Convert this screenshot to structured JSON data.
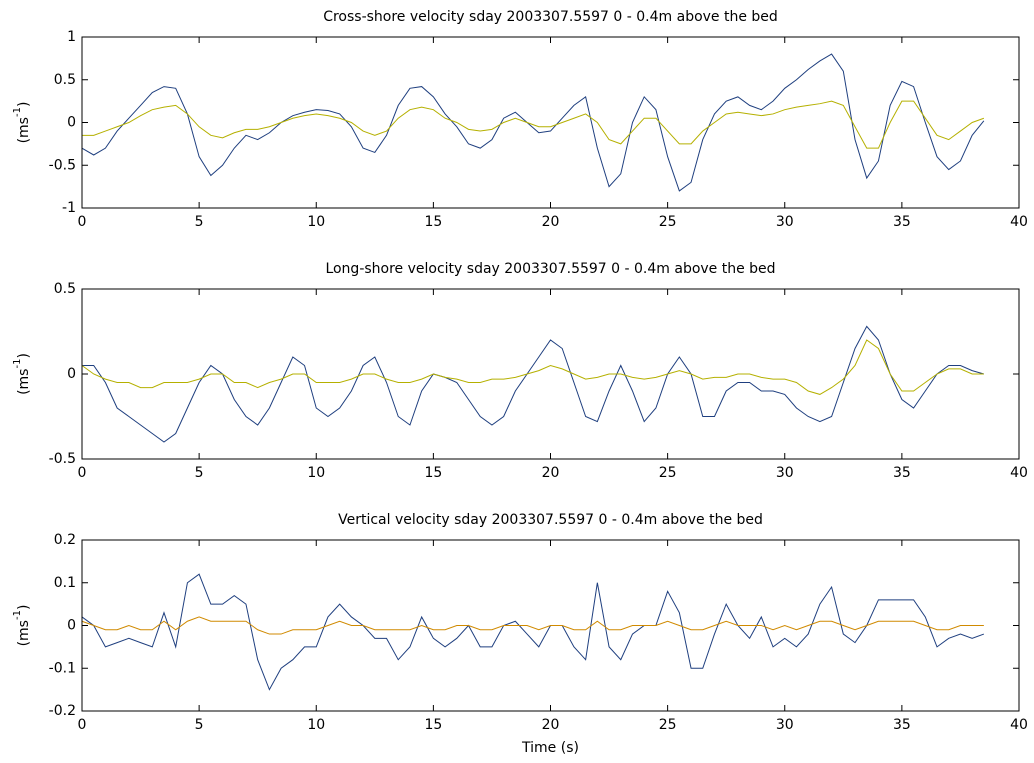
{
  "chart_data": [
    {
      "type": "line",
      "title": "Cross-shore velocity sday 2003307.5597 0 - 0.4m above the bed",
      "ylabel": {
        "base": "(ms",
        "sup": "-1",
        "close": ")"
      },
      "x": [
        0,
        0.5,
        1,
        1.5,
        2,
        2.5,
        3,
        3.5,
        4,
        4.5,
        5,
        5.5,
        6,
        6.5,
        7,
        7.5,
        8,
        8.5,
        9,
        9.5,
        10,
        10.5,
        11,
        11.5,
        12,
        12.5,
        13,
        13.5,
        14,
        14.5,
        15,
        15.5,
        16,
        16.5,
        17,
        17.5,
        18,
        18.5,
        19,
        19.5,
        20,
        20.5,
        21,
        21.5,
        22,
        22.5,
        23,
        23.5,
        24,
        24.5,
        25,
        25.5,
        26,
        26.5,
        27,
        27.5,
        28,
        28.5,
        29,
        29.5,
        30,
        30.5,
        31,
        31.5,
        32,
        32.5,
        33,
        33.5,
        34,
        34.5,
        35,
        35.5,
        36,
        36.5,
        37,
        37.5,
        38,
        38.5
      ],
      "series": [
        {
          "color": "#1f3f7f",
          "values": [
            -0.3,
            -0.38,
            -0.3,
            -0.1,
            0.05,
            0.2,
            0.35,
            0.42,
            0.4,
            0.1,
            -0.4,
            -0.62,
            -0.5,
            -0.3,
            -0.15,
            -0.2,
            -0.12,
            0.0,
            0.08,
            0.12,
            0.15,
            0.14,
            0.1,
            -0.05,
            -0.3,
            -0.35,
            -0.15,
            0.2,
            0.4,
            0.42,
            0.3,
            0.1,
            -0.05,
            -0.25,
            -0.3,
            -0.2,
            0.05,
            0.12,
            0.0,
            -0.12,
            -0.1,
            0.05,
            0.2,
            0.3,
            -0.3,
            -0.75,
            -0.6,
            0.0,
            0.3,
            0.15,
            -0.4,
            -0.8,
            -0.7,
            -0.2,
            0.1,
            0.25,
            0.3,
            0.2,
            0.15,
            0.25,
            0.4,
            0.5,
            0.62,
            0.72,
            0.8,
            0.6,
            -0.2,
            -0.65,
            -0.45,
            0.2,
            0.48,
            0.42,
            0.0,
            -0.4,
            -0.55,
            -0.45,
            -0.15,
            0.02
          ]
        },
        {
          "color": "#b5b000",
          "values": [
            -0.15,
            -0.15,
            -0.1,
            -0.05,
            0.0,
            0.08,
            0.15,
            0.18,
            0.2,
            0.1,
            -0.05,
            -0.15,
            -0.18,
            -0.12,
            -0.08,
            -0.08,
            -0.05,
            0.0,
            0.05,
            0.08,
            0.1,
            0.08,
            0.05,
            0.0,
            -0.1,
            -0.15,
            -0.1,
            0.05,
            0.15,
            0.18,
            0.15,
            0.05,
            0.0,
            -0.08,
            -0.1,
            -0.08,
            0.0,
            0.05,
            0.0,
            -0.05,
            -0.05,
            0.0,
            0.05,
            0.1,
            0.0,
            -0.2,
            -0.25,
            -0.1,
            0.05,
            0.05,
            -0.1,
            -0.25,
            -0.25,
            -0.1,
            0.0,
            0.1,
            0.12,
            0.1,
            0.08,
            0.1,
            0.15,
            0.18,
            0.2,
            0.22,
            0.25,
            0.2,
            -0.05,
            -0.3,
            -0.3,
            0.0,
            0.25,
            0.25,
            0.05,
            -0.15,
            -0.2,
            -0.1,
            0.0,
            0.05
          ]
        }
      ],
      "xlim": [
        0,
        40
      ],
      "xticks": [
        0,
        5,
        10,
        15,
        20,
        25,
        30,
        35,
        40
      ],
      "ylim": [
        -1,
        1
      ],
      "yticks": [
        -1,
        -0.5,
        0,
        0.5,
        1
      ]
    },
    {
      "type": "line",
      "title": "Long-shore velocity sday 2003307.5597 0 - 0.4m above the bed",
      "ylabel": {
        "base": "(ms",
        "sup": "-1",
        "close": ")"
      },
      "x": [
        0,
        0.5,
        1,
        1.5,
        2,
        2.5,
        3,
        3.5,
        4,
        4.5,
        5,
        5.5,
        6,
        6.5,
        7,
        7.5,
        8,
        8.5,
        9,
        9.5,
        10,
        10.5,
        11,
        11.5,
        12,
        12.5,
        13,
        13.5,
        14,
        14.5,
        15,
        15.5,
        16,
        16.5,
        17,
        17.5,
        18,
        18.5,
        19,
        19.5,
        20,
        20.5,
        21,
        21.5,
        22,
        22.5,
        23,
        23.5,
        24,
        24.5,
        25,
        25.5,
        26,
        26.5,
        27,
        27.5,
        28,
        28.5,
        29,
        29.5,
        30,
        30.5,
        31,
        31.5,
        32,
        32.5,
        33,
        33.5,
        34,
        34.5,
        35,
        35.5,
        36,
        36.5,
        37,
        37.5,
        38,
        38.5
      ],
      "series": [
        {
          "color": "#1f3f7f",
          "values": [
            0.05,
            0.05,
            -0.05,
            -0.2,
            -0.25,
            -0.3,
            -0.35,
            -0.4,
            -0.35,
            -0.2,
            -0.05,
            0.05,
            0.0,
            -0.15,
            -0.25,
            -0.3,
            -0.2,
            -0.05,
            0.1,
            0.05,
            -0.2,
            -0.25,
            -0.2,
            -0.1,
            0.05,
            0.1,
            -0.05,
            -0.25,
            -0.3,
            -0.1,
            0.0,
            -0.02,
            -0.05,
            -0.15,
            -0.25,
            -0.3,
            -0.25,
            -0.1,
            0.0,
            0.1,
            0.2,
            0.15,
            -0.05,
            -0.25,
            -0.28,
            -0.1,
            0.05,
            -0.1,
            -0.28,
            -0.2,
            0.0,
            0.1,
            0.0,
            -0.25,
            -0.25,
            -0.1,
            -0.05,
            -0.05,
            -0.1,
            -0.1,
            -0.12,
            -0.2,
            -0.25,
            -0.28,
            -0.25,
            -0.05,
            0.15,
            0.28,
            0.2,
            0.0,
            -0.15,
            -0.2,
            -0.1,
            0.0,
            0.05,
            0.05,
            0.02,
            0.0
          ]
        },
        {
          "color": "#b5b000",
          "values": [
            0.05,
            0.0,
            -0.03,
            -0.05,
            -0.05,
            -0.08,
            -0.08,
            -0.05,
            -0.05,
            -0.05,
            -0.03,
            0.0,
            0.0,
            -0.05,
            -0.05,
            -0.08,
            -0.05,
            -0.03,
            0.0,
            0.0,
            -0.05,
            -0.05,
            -0.05,
            -0.03,
            0.0,
            0.0,
            -0.03,
            -0.05,
            -0.05,
            -0.03,
            0.0,
            -0.02,
            -0.03,
            -0.05,
            -0.05,
            -0.03,
            -0.03,
            -0.02,
            0.0,
            0.02,
            0.05,
            0.03,
            0.0,
            -0.03,
            -0.02,
            0.0,
            0.0,
            -0.02,
            -0.03,
            -0.02,
            0.0,
            0.02,
            0.0,
            -0.03,
            -0.02,
            -0.02,
            0.0,
            0.0,
            -0.02,
            -0.03,
            -0.03,
            -0.05,
            -0.1,
            -0.12,
            -0.08,
            -0.03,
            0.05,
            0.2,
            0.15,
            0.0,
            -0.1,
            -0.1,
            -0.05,
            0.0,
            0.03,
            0.03,
            0.0,
            0.0
          ]
        }
      ],
      "xlim": [
        0,
        40
      ],
      "xticks": [
        0,
        5,
        10,
        15,
        20,
        25,
        30,
        35,
        40
      ],
      "ylim": [
        -0.5,
        0.5
      ],
      "yticks": [
        -0.5,
        0,
        0.5
      ]
    },
    {
      "type": "line",
      "title": "Vertical velocity sday 2003307.5597 0 - 0.4m above the bed",
      "ylabel": {
        "base": "(ms",
        "sup": "-1",
        "close": ")"
      },
      "xlabel": "Time (s)",
      "x": [
        0,
        0.5,
        1,
        1.5,
        2,
        2.5,
        3,
        3.5,
        4,
        4.5,
        5,
        5.5,
        6,
        6.5,
        7,
        7.5,
        8,
        8.5,
        9,
        9.5,
        10,
        10.5,
        11,
        11.5,
        12,
        12.5,
        13,
        13.5,
        14,
        14.5,
        15,
        15.5,
        16,
        16.5,
        17,
        17.5,
        18,
        18.5,
        19,
        19.5,
        20,
        20.5,
        21,
        21.5,
        22,
        22.5,
        23,
        23.5,
        24,
        24.5,
        25,
        25.5,
        26,
        26.5,
        27,
        27.5,
        28,
        28.5,
        29,
        29.5,
        30,
        30.5,
        31,
        31.5,
        32,
        32.5,
        33,
        33.5,
        34,
        34.5,
        35,
        35.5,
        36,
        36.5,
        37,
        37.5,
        38,
        38.5
      ],
      "series": [
        {
          "color": "#1f3f7f",
          "values": [
            0.02,
            0.0,
            -0.05,
            -0.04,
            -0.03,
            -0.04,
            -0.05,
            0.03,
            -0.05,
            0.1,
            0.12,
            0.05,
            0.05,
            0.07,
            0.05,
            -0.08,
            -0.15,
            -0.1,
            -0.08,
            -0.05,
            -0.05,
            0.02,
            0.05,
            0.02,
            0.0,
            -0.03,
            -0.03,
            -0.08,
            -0.05,
            0.02,
            -0.03,
            -0.05,
            -0.03,
            0.0,
            -0.05,
            -0.05,
            0.0,
            0.01,
            -0.02,
            -0.05,
            0.0,
            0.0,
            -0.05,
            -0.08,
            0.1,
            -0.05,
            -0.08,
            -0.02,
            0.0,
            0.0,
            0.08,
            0.03,
            -0.1,
            -0.1,
            -0.02,
            0.05,
            0.0,
            -0.03,
            0.02,
            -0.05,
            -0.03,
            -0.05,
            -0.02,
            0.05,
            0.09,
            -0.02,
            -0.04,
            0.0,
            0.06,
            0.06,
            0.06,
            0.06,
            0.02,
            -0.05,
            -0.03,
            -0.02,
            -0.03,
            -0.02
          ]
        },
        {
          "color": "#d08a00",
          "values": [
            0.01,
            0.0,
            -0.01,
            -0.01,
            0.0,
            -0.01,
            -0.01,
            0.01,
            -0.01,
            0.01,
            0.02,
            0.01,
            0.01,
            0.01,
            0.01,
            -0.01,
            -0.02,
            -0.02,
            -0.01,
            -0.01,
            -0.01,
            0.0,
            0.01,
            0.0,
            0.0,
            -0.01,
            -0.01,
            -0.01,
            -0.01,
            0.0,
            -0.01,
            -0.01,
            0.0,
            0.0,
            -0.01,
            -0.01,
            0.0,
            0.0,
            0.0,
            -0.01,
            0.0,
            0.0,
            -0.01,
            -0.01,
            0.01,
            -0.01,
            -0.01,
            0.0,
            0.0,
            0.0,
            0.01,
            0.0,
            -0.01,
            -0.01,
            0.0,
            0.01,
            0.0,
            0.0,
            0.0,
            -0.01,
            0.0,
            -0.01,
            0.0,
            0.01,
            0.01,
            0.0,
            -0.01,
            0.0,
            0.01,
            0.01,
            0.01,
            0.01,
            0.0,
            -0.01,
            -0.01,
            0.0,
            0.0,
            0.0
          ]
        }
      ],
      "xlim": [
        0,
        40
      ],
      "xticks": [
        0,
        5,
        10,
        15,
        20,
        25,
        30,
        35,
        40
      ],
      "ylim": [
        -0.2,
        0.2
      ],
      "yticks": [
        -0.2,
        -0.1,
        0,
        0.1,
        0.2
      ]
    }
  ]
}
